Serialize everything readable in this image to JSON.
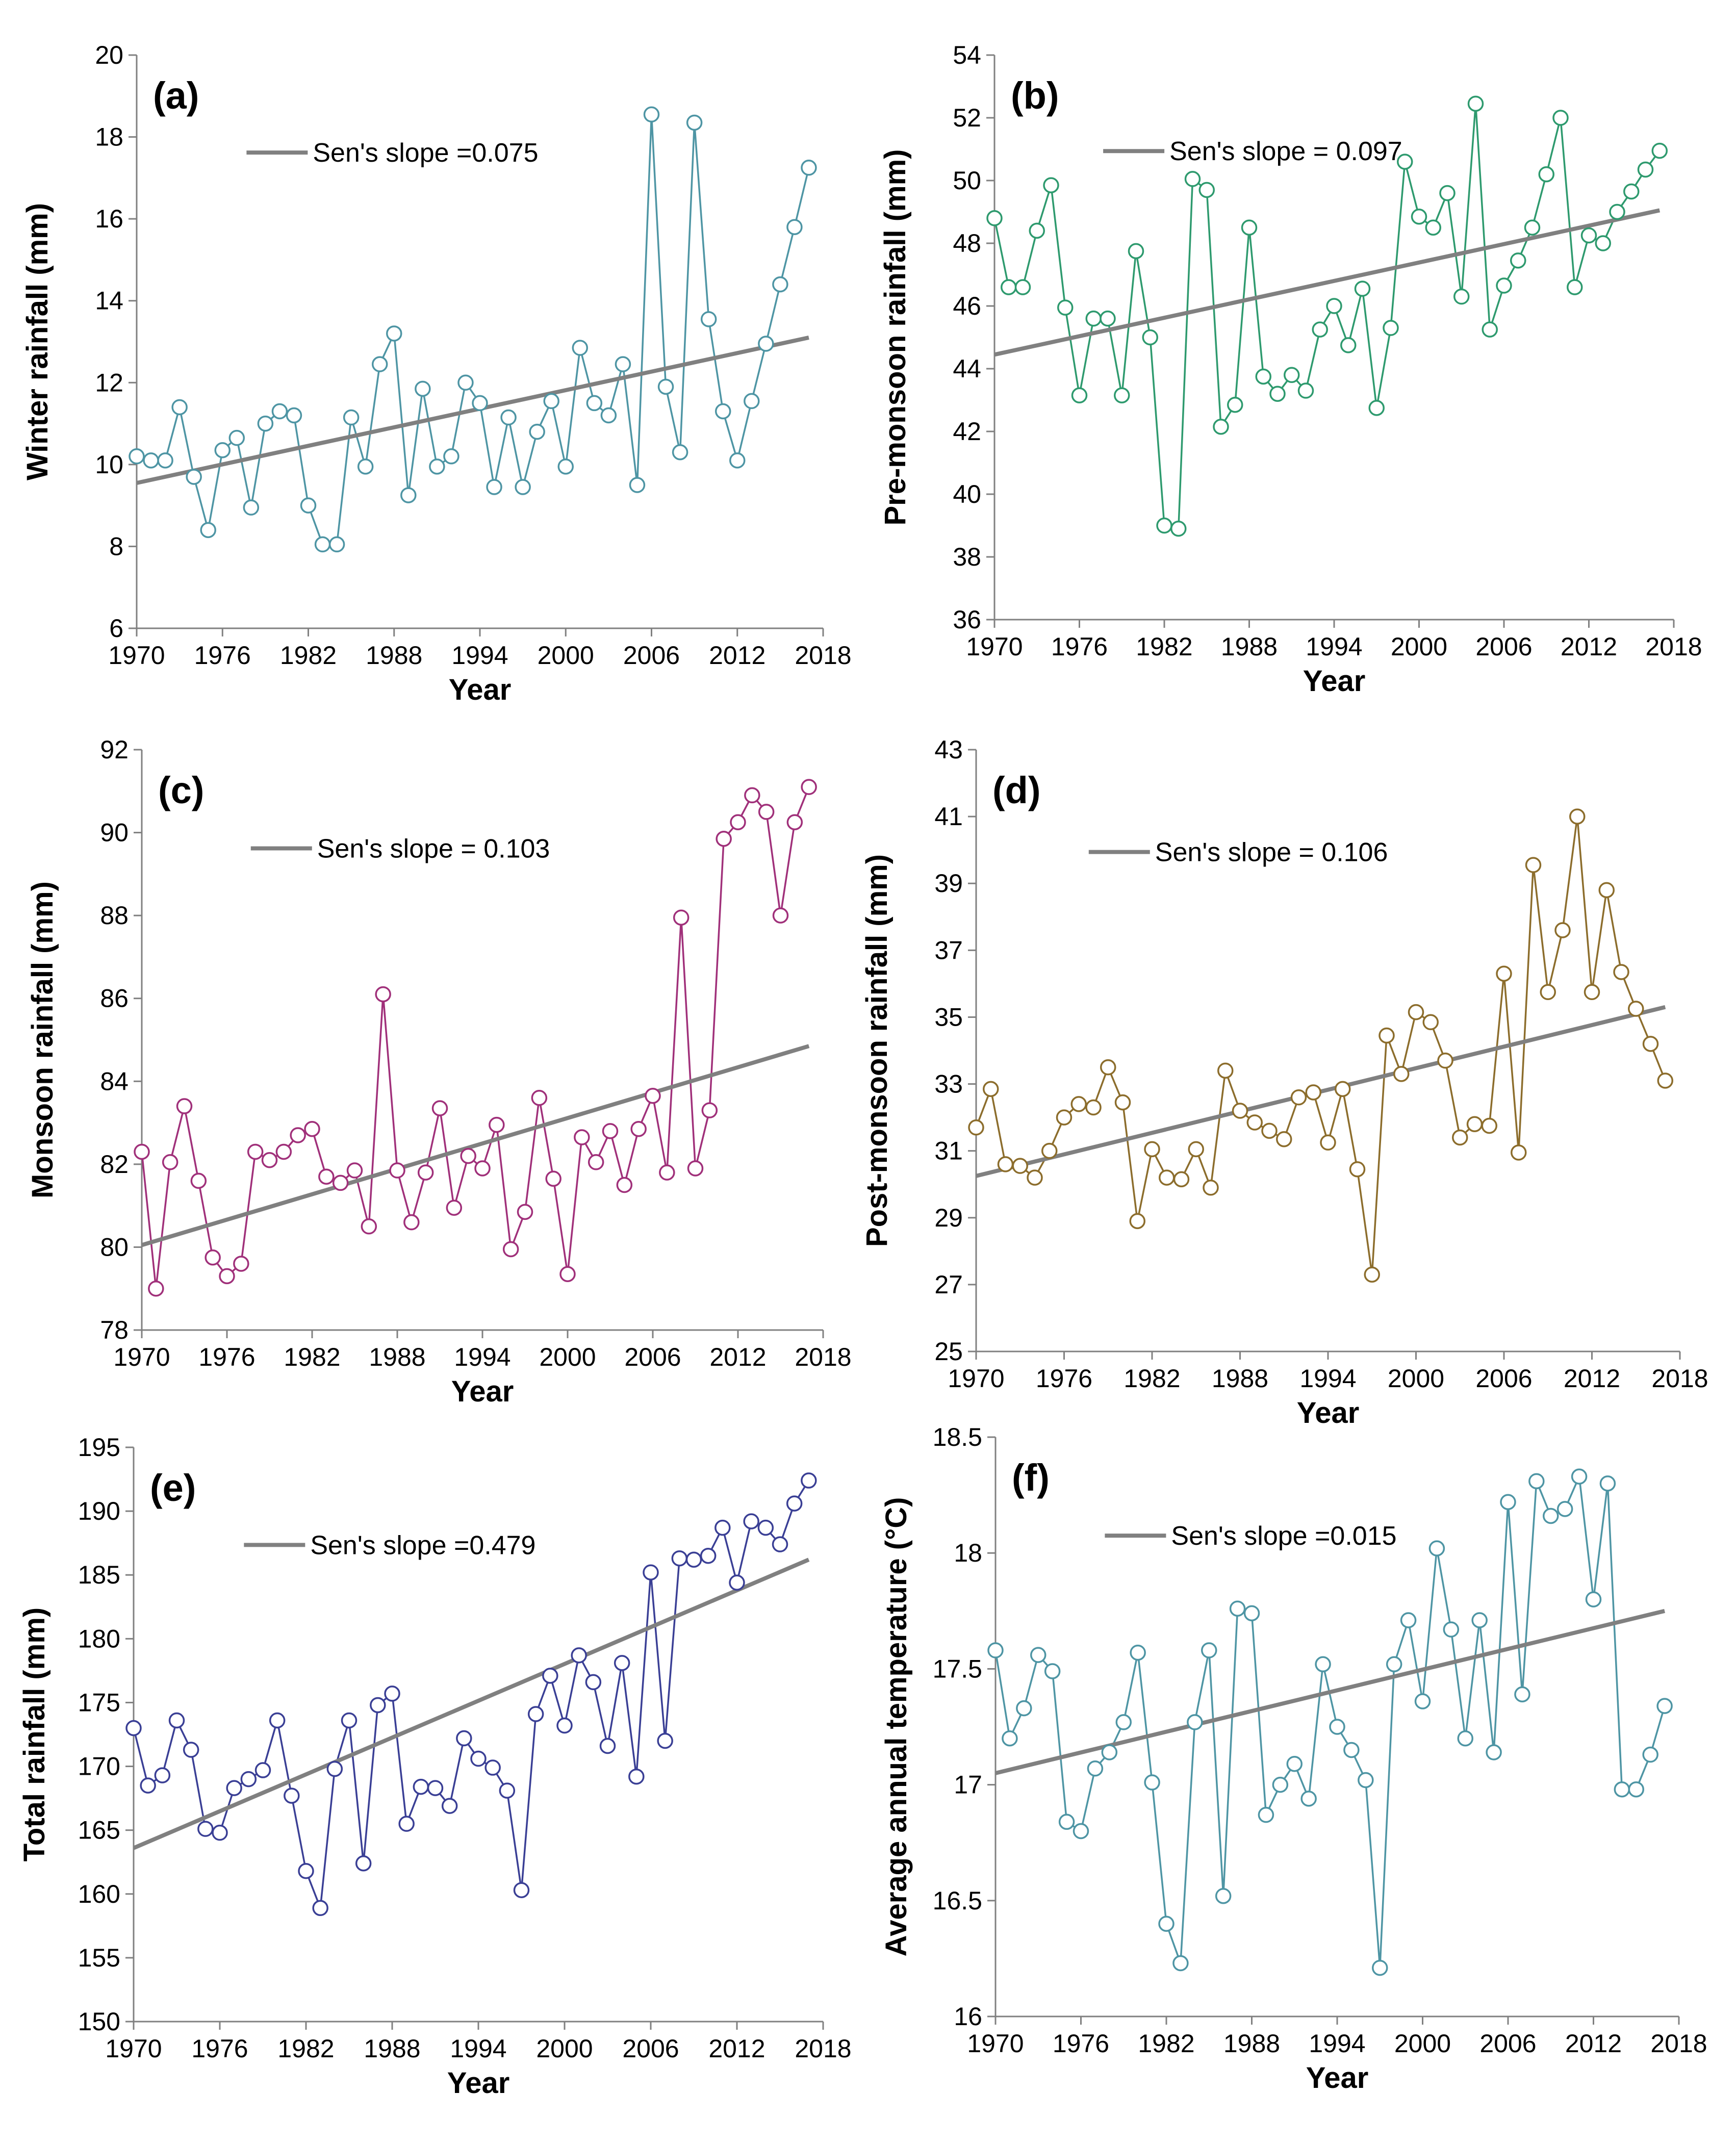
{
  "figure": {
    "description": "Six-panel time series figure 1970-2017 with Sen's slope trend lines"
  },
  "colors": {
    "trend": "#808080",
    "axis": "#808080",
    "text": "#000000"
  },
  "chart_data": [
    {
      "id": "a",
      "type": "line",
      "title": "(a)",
      "xlabel": "Year",
      "ylabel": "Winter rainfall (mm)",
      "xlim": [
        1970,
        2018
      ],
      "xticks": [
        1970,
        1976,
        1982,
        1988,
        1994,
        2000,
        2006,
        2012,
        2018
      ],
      "ylim": [
        6,
        20
      ],
      "yticks": [
        6,
        8,
        10,
        12,
        14,
        16,
        18,
        20
      ],
      "yfmt": 0,
      "color": "#4e95a4",
      "legend_label": "Sen's slope =0.075",
      "legend_position": "upper-left",
      "trend": {
        "start": [
          1970,
          9.55
        ],
        "end": [
          2017,
          13.1
        ]
      },
      "x_start": 1970,
      "values": [
        10.2,
        10.1,
        10.1,
        11.4,
        9.7,
        8.4,
        10.35,
        10.65,
        8.95,
        11.0,
        11.3,
        11.2,
        9.0,
        8.05,
        8.05,
        11.15,
        9.95,
        12.45,
        13.2,
        9.25,
        11.85,
        9.95,
        10.2,
        12.0,
        11.5,
        9.45,
        11.15,
        9.45,
        10.8,
        11.55,
        9.95,
        12.85,
        11.5,
        11.2,
        12.45,
        9.5,
        18.55,
        11.9,
        10.3,
        18.35,
        13.55,
        11.3,
        10.1,
        11.55,
        12.95,
        14.4,
        15.8,
        17.25
      ]
    },
    {
      "id": "b",
      "type": "line",
      "title": "(b)",
      "xlabel": "Year",
      "ylabel": "Pre-monsoon rainfall (mm)",
      "xlim": [
        1970,
        2018
      ],
      "xticks": [
        1970,
        1976,
        1982,
        1988,
        1994,
        2000,
        2006,
        2012,
        2018
      ],
      "ylim": [
        36,
        54
      ],
      "yticks": [
        36,
        38,
        40,
        42,
        44,
        46,
        48,
        50,
        52,
        54
      ],
      "yfmt": 0,
      "color": "#2e9a6e",
      "legend_label": "Sen's slope   = 0.097",
      "legend_position": "upper-left",
      "trend": {
        "start": [
          1970,
          44.45
        ],
        "end": [
          2017,
          49.05
        ]
      },
      "x_start": 1970,
      "values": [
        48.8,
        46.6,
        46.6,
        48.4,
        49.85,
        45.95,
        43.15,
        45.6,
        45.6,
        43.15,
        47.75,
        45.0,
        39.0,
        38.9,
        50.05,
        49.7,
        42.15,
        42.85,
        48.5,
        43.75,
        43.2,
        43.8,
        43.3,
        45.25,
        46.0,
        44.75,
        46.55,
        42.75,
        45.3,
        50.6,
        48.85,
        48.5,
        49.6,
        46.3,
        52.45,
        45.25,
        46.65,
        47.45,
        48.5,
        50.2,
        52.0,
        46.6,
        48.25,
        48.0,
        49.0,
        49.65,
        50.35,
        50.95
      ]
    },
    {
      "id": "c",
      "type": "line",
      "title": "(c)",
      "xlabel": "Year",
      "ylabel": "Monsoon rainfall (mm)",
      "xlim": [
        1970,
        2018
      ],
      "xticks": [
        1970,
        1976,
        1982,
        1988,
        1994,
        2000,
        2006,
        2012,
        2018
      ],
      "ylim": [
        78,
        92
      ],
      "yticks": [
        78,
        80,
        82,
        84,
        86,
        88,
        90,
        92
      ],
      "yfmt": 0,
      "color": "#a0307a",
      "legend_label": "Sen's slope = 0.103",
      "legend_position": "upper-left",
      "trend": {
        "start": [
          1970,
          80.05
        ],
        "end": [
          2017,
          84.85
        ]
      },
      "x_start": 1970,
      "values": [
        82.3,
        79.0,
        82.05,
        83.4,
        81.6,
        79.75,
        79.3,
        79.6,
        82.3,
        82.1,
        82.3,
        82.7,
        82.85,
        81.7,
        81.55,
        81.85,
        80.5,
        86.1,
        81.85,
        80.6,
        81.8,
        83.35,
        80.95,
        82.2,
        81.9,
        82.95,
        79.95,
        80.85,
        83.6,
        81.65,
        79.35,
        82.65,
        82.05,
        82.8,
        81.5,
        82.85,
        83.65,
        81.8,
        87.95,
        81.9,
        83.3,
        89.85,
        90.25,
        90.9,
        90.5,
        88.0,
        90.25,
        91.1
      ]
    },
    {
      "id": "d",
      "type": "line",
      "title": "(d)",
      "xlabel": "Year",
      "ylabel": "Post-monsoon rainfall (mm)",
      "xlim": [
        1970,
        2018
      ],
      "xticks": [
        1970,
        1976,
        1982,
        1988,
        1994,
        2000,
        2006,
        2012,
        2018
      ],
      "ylim": [
        25,
        43
      ],
      "yticks": [
        25,
        27,
        29,
        31,
        33,
        35,
        37,
        39,
        41,
        43
      ],
      "yfmt": 0,
      "color": "#8c6d2c",
      "legend_label": "Sen's slope   = 0.106",
      "legend_position": "upper-left",
      "trend": {
        "start": [
          1970,
          30.25
        ],
        "end": [
          2017,
          35.3
        ]
      },
      "x_start": 1970,
      "values": [
        31.7,
        32.85,
        30.6,
        30.55,
        30.2,
        31.0,
        32.0,
        32.4,
        32.3,
        33.5,
        32.45,
        28.9,
        31.05,
        30.2,
        30.15,
        31.05,
        29.9,
        33.4,
        32.2,
        31.85,
        31.6,
        31.35,
        32.6,
        32.75,
        31.25,
        32.85,
        30.45,
        27.3,
        34.45,
        33.3,
        35.15,
        34.85,
        33.7,
        31.4,
        31.8,
        31.75,
        36.3,
        30.95,
        39.55,
        35.75,
        37.6,
        41.0,
        35.75,
        38.8,
        36.35,
        35.25,
        34.2,
        33.1
      ]
    },
    {
      "id": "e",
      "type": "line",
      "title": "(e)",
      "xlabel": "Year",
      "ylabel": "Total rainfall (mm)",
      "xlim": [
        1970,
        2018
      ],
      "xticks": [
        1970,
        1976,
        1982,
        1988,
        1994,
        2000,
        2006,
        2012,
        2018
      ],
      "ylim": [
        150,
        195
      ],
      "yticks": [
        150,
        155,
        160,
        165,
        170,
        175,
        180,
        185,
        190,
        195
      ],
      "yfmt": 0,
      "color": "#3a3f95",
      "legend_label": "Sen's slope   =0.479",
      "legend_position": "upper-left",
      "trend": {
        "start": [
          1970,
          163.6
        ],
        "end": [
          2017,
          186.2
        ]
      },
      "x_start": 1970,
      "values": [
        173.0,
        168.5,
        169.3,
        173.6,
        171.3,
        165.1,
        164.8,
        168.3,
        169.0,
        169.7,
        173.6,
        167.7,
        161.8,
        158.9,
        169.8,
        173.6,
        162.4,
        174.8,
        175.7,
        165.5,
        168.4,
        168.3,
        166.9,
        172.2,
        170.6,
        169.9,
        168.1,
        160.3,
        174.1,
        177.1,
        173.2,
        178.7,
        176.6,
        171.6,
        178.1,
        169.2,
        185.2,
        172.0,
        186.3,
        186.2,
        186.5,
        188.7,
        184.4,
        189.2,
        188.7,
        187.4,
        190.6,
        192.4
      ]
    },
    {
      "id": "f",
      "type": "line",
      "title": "(f)",
      "xlabel": "Year",
      "ylabel": "Average annual temperature (°C)",
      "xlim": [
        1970,
        2018
      ],
      "xticks": [
        1970,
        1976,
        1982,
        1988,
        1994,
        2000,
        2006,
        2012,
        2018
      ],
      "ylim": [
        16,
        18.5
      ],
      "yticks": [
        16,
        16.5,
        17,
        17.5,
        18,
        18.5
      ],
      "yfmt": 1,
      "color": "#4e95a4",
      "legend_label": "Sen's slope =0.015",
      "legend_position": "upper-left",
      "trend": {
        "start": [
          1970,
          17.05
        ],
        "end": [
          2017,
          17.75
        ]
      },
      "x_start": 1970,
      "values": [
        17.58,
        17.2,
        17.33,
        17.56,
        17.49,
        16.84,
        16.8,
        17.07,
        17.14,
        17.27,
        17.57,
        17.01,
        16.4,
        16.23,
        17.27,
        17.58,
        16.52,
        17.76,
        17.74,
        16.87,
        17.0,
        17.09,
        16.94,
        17.52,
        17.25,
        17.15,
        17.02,
        16.21,
        17.52,
        17.71,
        17.36,
        18.02,
        17.67,
        17.2,
        17.71,
        17.14,
        18.22,
        17.39,
        18.31,
        18.16,
        18.19,
        18.33,
        17.8,
        18.3,
        16.98,
        16.98,
        17.13,
        17.34
      ]
    }
  ]
}
